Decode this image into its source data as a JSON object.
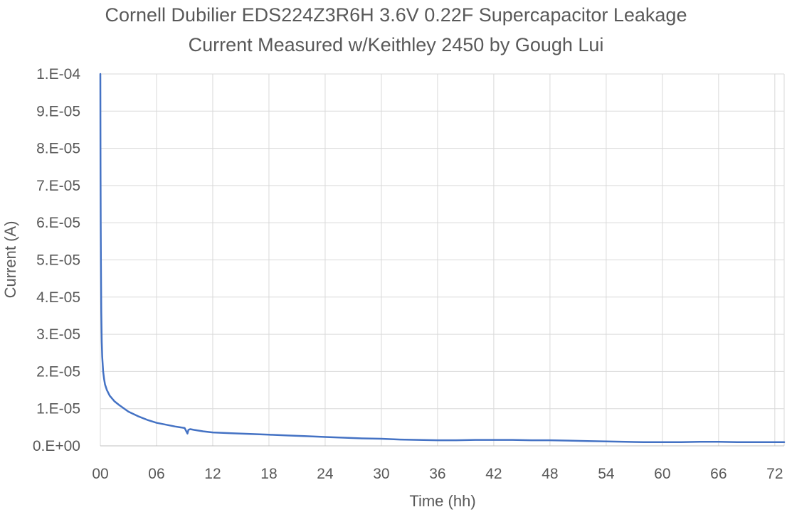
{
  "chart_data": {
    "type": "line",
    "title_lines": [
      "Cornell Dubilier EDS224Z3R6H 3.6V 0.22F Supercapacitor Leakage",
      "Current Measured w/Keithley 2450 by Gough Lui"
    ],
    "xlabel": "Time (hh)",
    "ylabel": "Current (A)",
    "xlim": [
      0,
      73
    ],
    "ylim": [
      0,
      0.0001
    ],
    "x_ticks": [
      0,
      6,
      12,
      18,
      24,
      30,
      36,
      42,
      48,
      54,
      60,
      66,
      72
    ],
    "x_tick_labels": [
      "00",
      "06",
      "12",
      "18",
      "24",
      "30",
      "36",
      "42",
      "48",
      "54",
      "60",
      "66",
      "72"
    ],
    "y_ticks": [
      0,
      1e-05,
      2e-05,
      3e-05,
      4e-05,
      5e-05,
      6e-05,
      7e-05,
      8e-05,
      9e-05,
      0.0001
    ],
    "y_tick_labels": [
      "0.E+00",
      "1.E-05",
      "2.E-05",
      "3.E-05",
      "4.E-05",
      "5.E-05",
      "6.E-05",
      "7.E-05",
      "8.E-05",
      "9.E-05",
      "1.E-04"
    ],
    "grid": true,
    "legend": "none",
    "series_color": "#4472c4",
    "series": [
      {
        "x": [
          0,
          0.01,
          0.02,
          0.04,
          0.06,
          0.08,
          0.1,
          0.15,
          0.2,
          0.3,
          0.4,
          0.5,
          0.7,
          1.0,
          1.5,
          2.0,
          3.0,
          4.0,
          5.0,
          6.0,
          7.0,
          8.0,
          9.0,
          9.3,
          9.4,
          9.6,
          10,
          11,
          12,
          14,
          16,
          18,
          20,
          22,
          24,
          26,
          28,
          30,
          32,
          34,
          36,
          38,
          40,
          42,
          44,
          46,
          48,
          50,
          52,
          54,
          56,
          58,
          60,
          62,
          64,
          66,
          68,
          70,
          72,
          73
        ],
        "y": [
          0.0001,
          8.7e-05,
          7.5e-05,
          6e-05,
          5e-05,
          4.3e-05,
          3.6e-05,
          2.8e-05,
          2.4e-05,
          2e-05,
          1.8e-05,
          1.65e-05,
          1.5e-05,
          1.35e-05,
          1.2e-05,
          1.1e-05,
          9.2e-06,
          8e-06,
          7e-06,
          6.2e-06,
          5.7e-06,
          5.2e-06,
          4.8e-06,
          3.3e-06,
          4.3e-06,
          4.5e-06,
          4.3e-06,
          3.9e-06,
          3.6e-06,
          3.4e-06,
          3.2e-06,
          3e-06,
          2.8e-06,
          2.6e-06,
          2.4e-06,
          2.2e-06,
          2e-06,
          1.9e-06,
          1.7e-06,
          1.6e-06,
          1.5e-06,
          1.5e-06,
          1.6e-06,
          1.6e-06,
          1.6e-06,
          1.5e-06,
          1.5e-06,
          1.4e-06,
          1.3e-06,
          1.2e-06,
          1.1e-06,
          1e-06,
          1e-06,
          1e-06,
          1.1e-06,
          1.1e-06,
          1e-06,
          1e-06,
          1e-06,
          1e-06
        ]
      }
    ]
  }
}
